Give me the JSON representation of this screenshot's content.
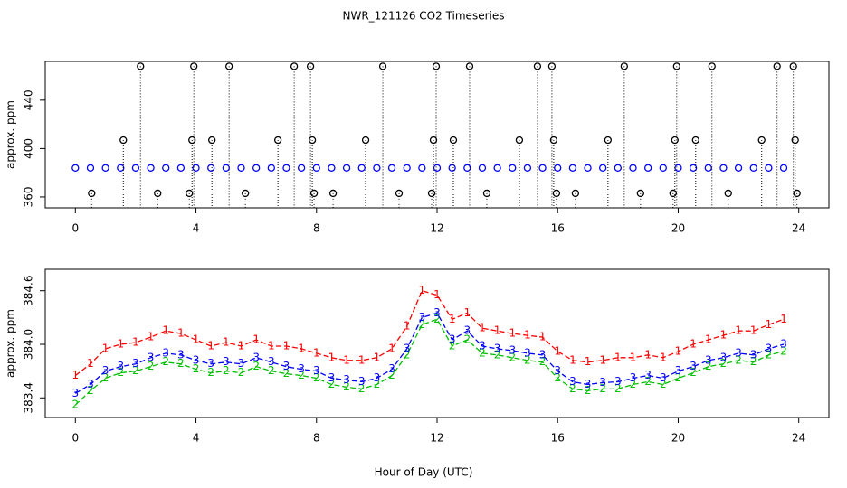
{
  "chart_data": [
    {
      "type": "scatter",
      "title": "NWR_121126  CO2 Timeseries",
      "ylabel": "approx. ppm",
      "xlim": [
        -1,
        25
      ],
      "xticks": [
        0,
        4,
        8,
        12,
        16,
        20,
        24
      ],
      "ylim": [
        351,
        472
      ],
      "yticks": [
        360,
        400,
        440
      ],
      "series": [
        {
          "color": "#0000ff",
          "x": [
            0,
            0.5,
            1,
            1.5,
            2,
            2.5,
            3,
            3.5,
            4,
            4.5,
            5,
            5.5,
            6,
            6.5,
            7,
            7.5,
            8,
            8.5,
            9,
            9.5,
            10,
            10.5,
            11,
            11.5,
            12,
            12.5,
            13,
            13.5,
            14,
            14.5,
            15,
            15.5,
            16,
            16.5,
            17,
            17.5,
            18,
            18.5,
            19,
            19.5,
            20,
            20.5,
            21,
            21.5,
            22,
            22.5,
            23,
            23.5
          ],
          "values": [
            384,
            384,
            384,
            384,
            384,
            384,
            384,
            384,
            384,
            384,
            384,
            384,
            384,
            384,
            384,
            384,
            384,
            384,
            384,
            384,
            384,
            384,
            384,
            384,
            384,
            384,
            384,
            384,
            384,
            384,
            384,
            384,
            384,
            384,
            384,
            384,
            384,
            384,
            384,
            384,
            384,
            384,
            384,
            384,
            384,
            384,
            384,
            384
          ]
        },
        {
          "color": "#000000",
          "drop_lines": true,
          "x": [
            2.16,
            3.93,
            5.1,
            7.26,
            7.8,
            10.2,
            11.97,
            13.08,
            15.33,
            15.81,
            18.21,
            19.95,
            21.12,
            23.28,
            23.82,
            1.59,
            3.87,
            4.53,
            6.72,
            7.86,
            9.63,
            11.88,
            12.54,
            14.73,
            15.87,
            17.67,
            19.89,
            20.58,
            22.77,
            23.88,
            0.54,
            2.73,
            3.78,
            5.64,
            7.92,
            8.55,
            10.74,
            11.82,
            13.65,
            15.96,
            16.59,
            18.75,
            19.83,
            21.66,
            23.94
          ],
          "values": [
            468,
            468,
            468,
            468,
            468,
            468,
            468,
            468,
            468,
            468,
            468,
            468,
            468,
            468,
            468,
            407,
            407,
            407,
            407,
            407,
            407,
            407,
            407,
            407,
            407,
            407,
            407,
            407,
            407,
            407,
            363,
            363,
            363,
            363,
            363,
            363,
            363,
            363,
            363,
            363,
            363,
            363,
            363,
            363,
            363
          ]
        }
      ]
    },
    {
      "type": "line",
      "ylabel": "approx. ppm",
      "xlabel": "Hour of Day (UTC)",
      "xlim": [
        -1,
        25
      ],
      "xticks": [
        0,
        4,
        8,
        12,
        16,
        20,
        24
      ],
      "ylim": [
        383.18,
        384.84
      ],
      "yticks": [
        {
          "value": 383.4,
          "label": "383.4"
        },
        {
          "value": 384.0,
          "label": "384.0"
        },
        {
          "value": 384.6,
          "label": "384.6"
        }
      ],
      "x": [
        0,
        0.5,
        1,
        1.5,
        2,
        2.5,
        3,
        3.5,
        4,
        4.5,
        5,
        5.5,
        6,
        6.5,
        7,
        7.5,
        8,
        8.5,
        9,
        9.5,
        10,
        10.5,
        11,
        11.5,
        12,
        12.5,
        13,
        13.5,
        14,
        14.5,
        15,
        15.5,
        16,
        16.5,
        17,
        17.5,
        18,
        18.5,
        19,
        19.5,
        20,
        20.5,
        21,
        21.5,
        22,
        22.5,
        23,
        23.5
      ],
      "series": [
        {
          "symbol": "1",
          "color": "#ff0000",
          "values": [
            383.65,
            383.78,
            383.95,
            384.0,
            384.02,
            384.08,
            384.15,
            384.12,
            384.05,
            383.98,
            384.02,
            383.98,
            384.05,
            383.98,
            383.98,
            383.95,
            383.9,
            383.85,
            383.82,
            383.82,
            383.85,
            383.95,
            384.2,
            384.6,
            384.55,
            384.28,
            384.35,
            384.18,
            384.15,
            384.12,
            384.1,
            384.08,
            383.92,
            383.82,
            383.8,
            383.82,
            383.85,
            383.85,
            383.88,
            383.85,
            383.92,
            384.0,
            384.05,
            384.1,
            384.15,
            384.15,
            384.22,
            384.28
          ]
        },
        {
          "symbol": "2",
          "color": "#00c000",
          "values": [
            383.32,
            383.48,
            383.62,
            383.68,
            383.7,
            383.75,
            383.8,
            383.78,
            383.72,
            383.68,
            383.7,
            383.68,
            383.75,
            383.7,
            383.67,
            383.65,
            383.62,
            383.55,
            383.52,
            383.5,
            383.55,
            383.65,
            383.88,
            384.22,
            384.28,
            383.98,
            384.05,
            383.9,
            383.88,
            383.85,
            383.82,
            383.8,
            383.62,
            383.5,
            383.48,
            383.5,
            383.5,
            383.55,
            383.58,
            383.55,
            383.62,
            383.68,
            383.75,
            383.78,
            383.82,
            383.8,
            383.88,
            383.92
          ]
        },
        {
          "symbol": "3",
          "color": "#0000ff",
          "values": [
            383.45,
            383.55,
            383.7,
            383.75,
            383.78,
            383.85,
            383.9,
            383.88,
            383.82,
            383.78,
            383.8,
            383.78,
            383.85,
            383.8,
            383.75,
            383.72,
            383.7,
            383.62,
            383.6,
            383.58,
            383.62,
            383.72,
            383.95,
            384.3,
            384.35,
            384.05,
            384.15,
            383.98,
            383.95,
            383.93,
            383.9,
            383.88,
            383.7,
            383.58,
            383.55,
            383.57,
            383.58,
            383.62,
            383.65,
            383.62,
            383.7,
            383.75,
            383.82,
            383.85,
            383.9,
            383.88,
            383.95,
            384.0
          ]
        }
      ]
    }
  ]
}
